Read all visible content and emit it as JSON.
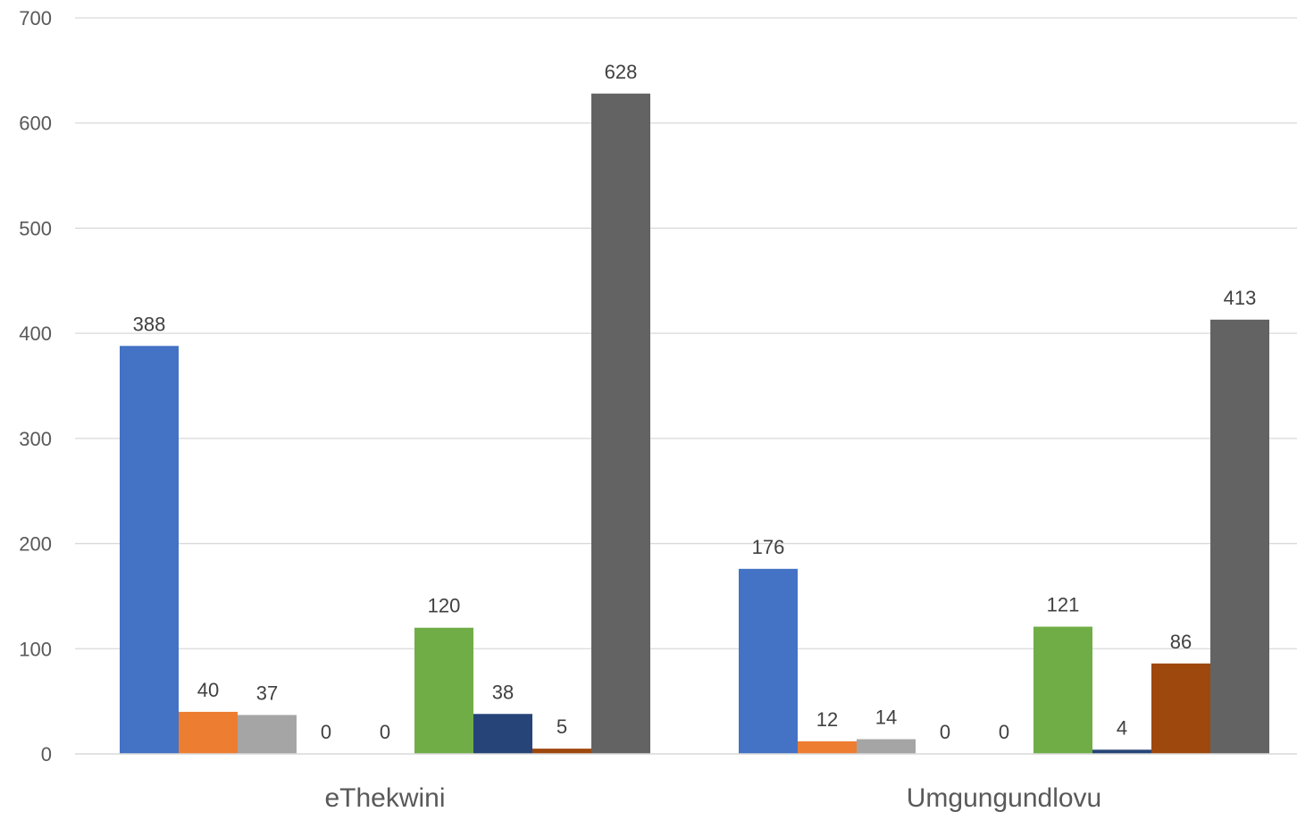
{
  "chart_data": {
    "type": "bar",
    "title": "",
    "xlabel": "",
    "ylabel": "",
    "ylim": [
      0,
      700
    ],
    "yticks": [
      0,
      100,
      200,
      300,
      400,
      500,
      600,
      700
    ],
    "grid": true,
    "legend": "none",
    "categories": [
      "eThekwini",
      "Umgungundlovu"
    ],
    "series": [
      {
        "color": "#4472C4",
        "values": [
          388,
          176
        ]
      },
      {
        "color": "#ED7D31",
        "values": [
          40,
          12
        ]
      },
      {
        "color": "#A5A5A5",
        "values": [
          37,
          14
        ]
      },
      {
        "color": "#FFC000",
        "values": [
          0,
          0
        ]
      },
      {
        "color": "#5B9BD5",
        "values": [
          0,
          0
        ]
      },
      {
        "color": "#70AD47",
        "values": [
          120,
          121
        ]
      },
      {
        "color": "#264478",
        "values": [
          38,
          4
        ]
      },
      {
        "color": "#9E480E",
        "values": [
          5,
          86
        ]
      },
      {
        "color": "#636363",
        "values": [
          628,
          413
        ]
      }
    ]
  }
}
